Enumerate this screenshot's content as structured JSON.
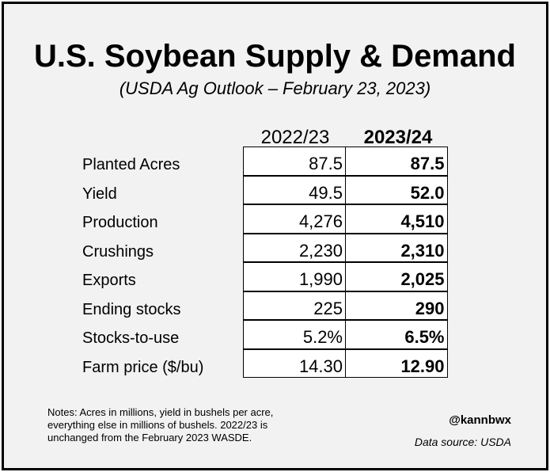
{
  "title": "U.S. Soybean Supply & Demand",
  "subtitle": "(USDA Ag Outlook – February 23, 2023)",
  "table": {
    "columns": [
      "2022/23",
      "2023/24"
    ],
    "rows": [
      [
        "Planted Acres",
        "87.5",
        "87.5"
      ],
      [
        "Yield",
        "49.5",
        "52.0"
      ],
      [
        "Production",
        "4,276",
        "4,510"
      ],
      [
        "Crushings",
        "2,230",
        "2,310"
      ],
      [
        "Exports",
        "1,990",
        "2,025"
      ],
      [
        "Ending stocks",
        "225",
        "290"
      ],
      [
        "Stocks-to-use",
        "5.2%",
        "6.5%"
      ],
      [
        "Farm price ($/bu)",
        "14.30",
        "12.90"
      ]
    ]
  },
  "notes": [
    "Notes: Acres in millions, yield in bushels per acre,",
    "everything else in millions of bushels. 2022/23 is",
    "unchanged from the February 2023 WASDE."
  ],
  "handle": "@kannbwx",
  "source": "Data source: USDA"
}
